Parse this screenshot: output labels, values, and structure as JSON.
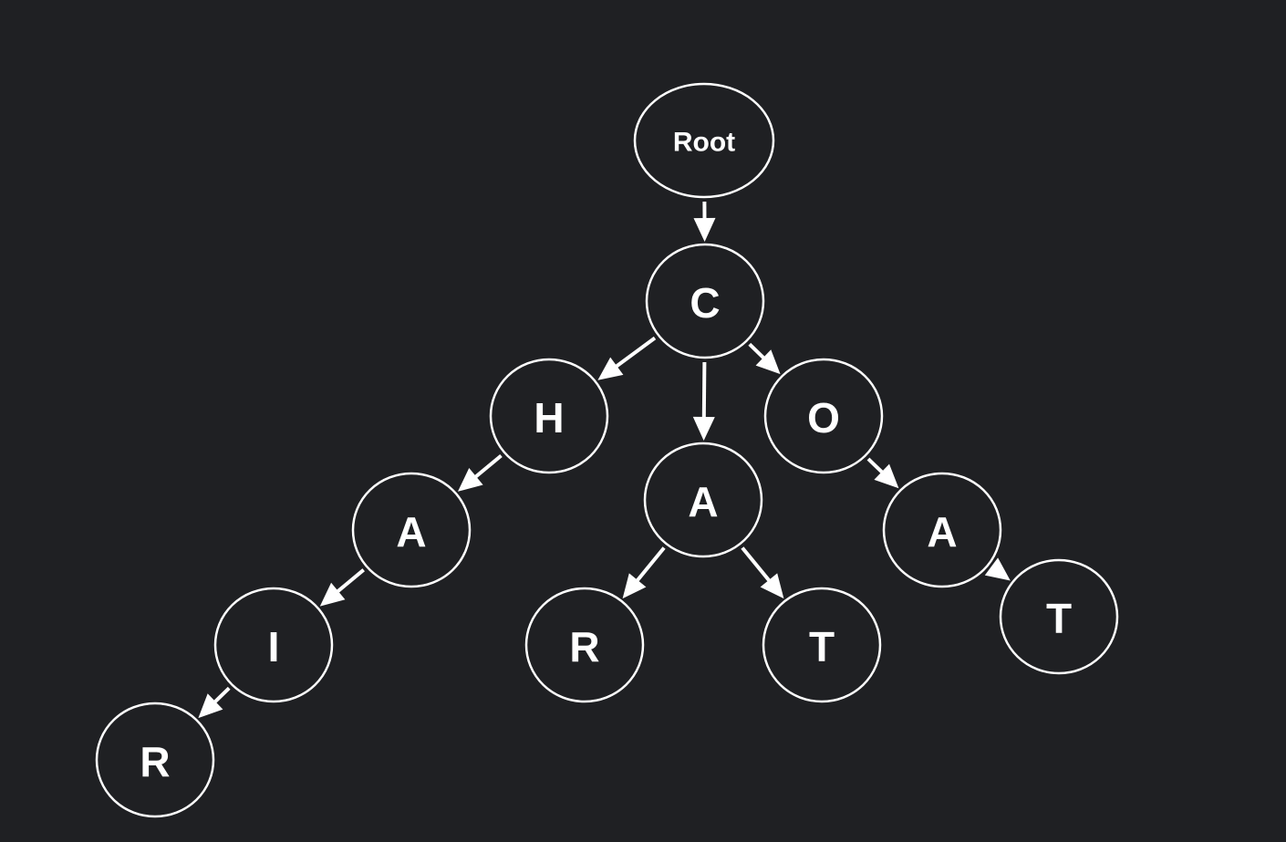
{
  "diagram": {
    "type": "trie",
    "colors": {
      "background": "#1f2023",
      "stroke": "#ffffff",
      "text": "#ffffff"
    },
    "nodes": [
      {
        "id": "root",
        "label": "Root"
      },
      {
        "id": "c",
        "label": "C"
      },
      {
        "id": "h",
        "label": "H"
      },
      {
        "id": "a1",
        "label": "A"
      },
      {
        "id": "o",
        "label": "O"
      },
      {
        "id": "a2",
        "label": "A"
      },
      {
        "id": "i",
        "label": "I"
      },
      {
        "id": "r1",
        "label": "R"
      },
      {
        "id": "r2",
        "label": "R"
      },
      {
        "id": "t1",
        "label": "T"
      },
      {
        "id": "a3",
        "label": "A"
      },
      {
        "id": "t2",
        "label": "T"
      }
    ],
    "edges": [
      {
        "from": "root",
        "to": "c"
      },
      {
        "from": "c",
        "to": "h"
      },
      {
        "from": "c",
        "to": "a1"
      },
      {
        "from": "c",
        "to": "o"
      },
      {
        "from": "h",
        "to": "a2"
      },
      {
        "from": "a2",
        "to": "i"
      },
      {
        "from": "i",
        "to": "r1"
      },
      {
        "from": "a1",
        "to": "r2"
      },
      {
        "from": "a1",
        "to": "t1"
      },
      {
        "from": "o",
        "to": "a3"
      },
      {
        "from": "a3",
        "to": "t2"
      }
    ]
  }
}
